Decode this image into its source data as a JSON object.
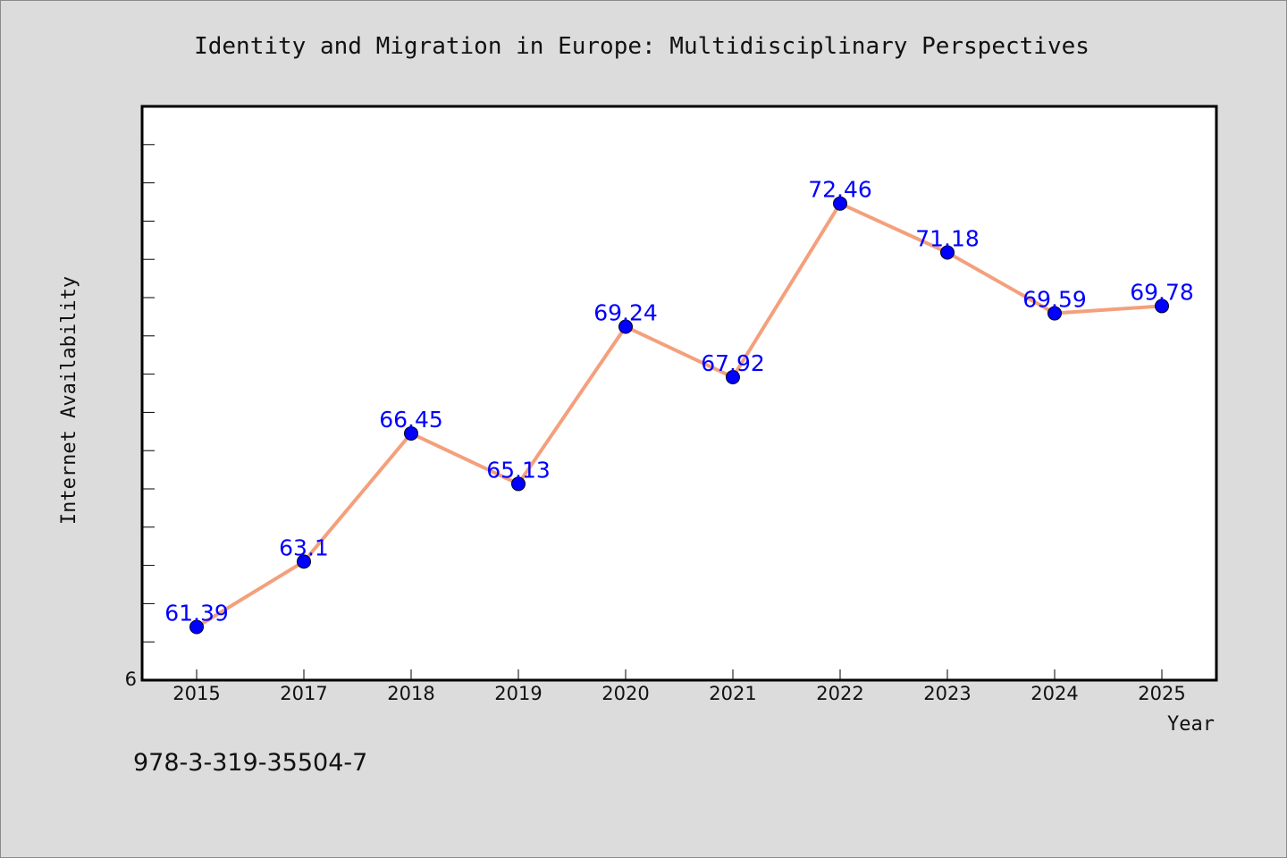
{
  "chart_data": {
    "type": "line",
    "title": "Identity and Migration in Europe: Multidisciplinary Perspectives",
    "xlabel": "Year",
    "ylabel": "Internet Availability",
    "categories": [
      "2015",
      "2017",
      "2018",
      "2019",
      "2020",
      "2021",
      "2022",
      "2023",
      "2024",
      "2025"
    ],
    "series": [
      {
        "values": [
          61.39,
          63.1,
          66.45,
          65.13,
          69.24,
          67.92,
          72.46,
          71.18,
          69.59,
          69.78
        ]
      }
    ],
    "data_labels": [
      "61.39",
      "63.1",
      "66.45",
      "65.13",
      "69.24",
      "67.92",
      "72.46",
      "71.18",
      "69.59",
      "69.78"
    ],
    "y_tick_labels": [
      "6"
    ],
    "ylim": [
      60.0,
      75.0
    ],
    "grid": false,
    "line_color": "#f4a07c",
    "marker_color": "#0000ff",
    "label_color": "#0000ff"
  },
  "footer_text": "978-3-319-35504-7"
}
